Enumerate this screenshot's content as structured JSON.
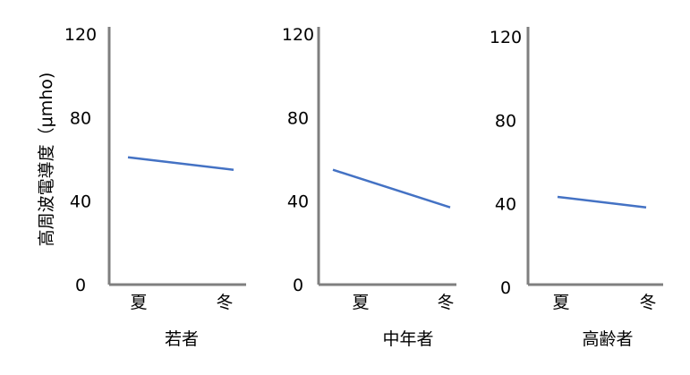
{
  "ylabel": "高周波電導度（μmho)",
  "series_color": "#4472c4",
  "axis_color": "#7f7f7f",
  "chart_data": [
    {
      "type": "line",
      "xlabel": "若者",
      "categories": [
        "夏",
        "冬"
      ],
      "values": [
        61,
        55
      ],
      "ylim": [
        0,
        120
      ],
      "yticks": [
        "0",
        "40",
        "80",
        "120"
      ],
      "grid": false
    },
    {
      "type": "line",
      "xlabel": "中年者",
      "categories": [
        "夏",
        "冬"
      ],
      "values": [
        55,
        37
      ],
      "ylim": [
        0,
        120
      ],
      "yticks": [
        "0",
        "40",
        "80",
        "120"
      ],
      "grid": false
    },
    {
      "type": "line",
      "xlabel": "高齢者",
      "categories": [
        "夏",
        "冬"
      ],
      "values": [
        42,
        37
      ],
      "ylim": [
        0,
        120
      ],
      "yticks": [
        "0",
        "40",
        "80",
        "120"
      ],
      "grid": false
    }
  ]
}
